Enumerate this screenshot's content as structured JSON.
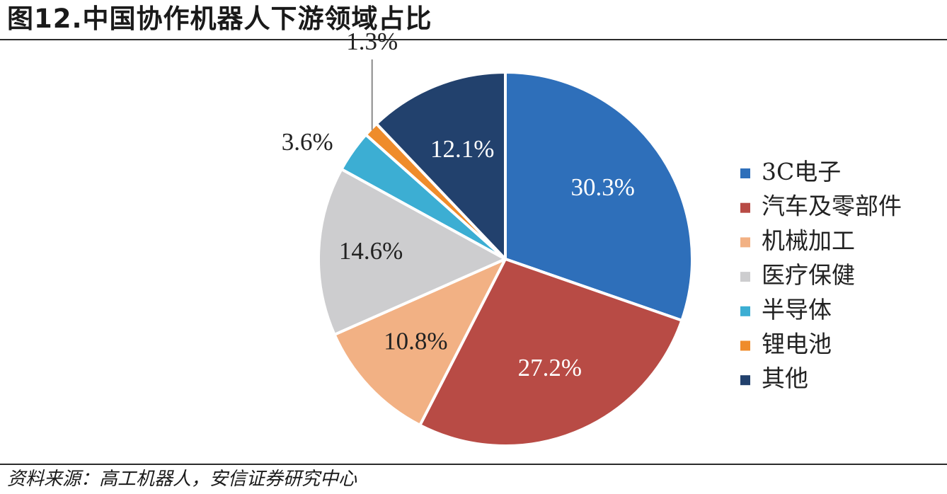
{
  "title": "图12.中国协作机器人下游领域占比",
  "source": "资料来源：高工机器人，安信证券研究中心",
  "chart_data": {
    "type": "pie",
    "legend_position": "right",
    "slices": [
      {
        "name": "3C电子",
        "value": 30.3,
        "label": "30.3%",
        "color": "#2e6fba"
      },
      {
        "name": "汽车及零部件",
        "value": 27.2,
        "label": "27.2%",
        "color": "#b84b45"
      },
      {
        "name": "机械加工",
        "value": 10.8,
        "label": "10.8%",
        "color": "#f2b184"
      },
      {
        "name": "医疗保健",
        "value": 14.6,
        "label": "14.6%",
        "color": "#cdcdcf"
      },
      {
        "name": "半导体",
        "value": 3.6,
        "label": "3.6%",
        "color": "#3caed3"
      },
      {
        "name": "锂电池",
        "value": 1.3,
        "label": "1.3%",
        "color": "#ef8c2b"
      },
      {
        "name": "其他",
        "value": 12.1,
        "label": "12.1%",
        "color": "#22416d"
      }
    ]
  }
}
